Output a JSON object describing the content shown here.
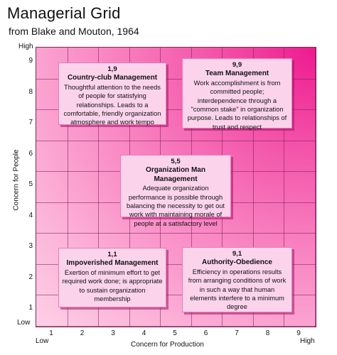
{
  "header": {
    "title": "Managerial Grid",
    "subtitle": "from Blake and Mouton, 1964"
  },
  "axes": {
    "y_label": "Concern for People",
    "x_label": "Concern for Production",
    "y_high": "High",
    "y_low": "Low",
    "x_low": "Low",
    "x_high": "High",
    "y_ticks": [
      "9",
      "8",
      "7",
      "6",
      "5",
      "4",
      "3",
      "2",
      "1"
    ],
    "x_ticks": [
      "1",
      "2",
      "3",
      "4",
      "5",
      "6",
      "7",
      "8",
      "9"
    ]
  },
  "styles": [
    {
      "coord": "1,9",
      "name": "Country-club Management",
      "desc": [
        "Thoughtful attention to the needs",
        "of people for statisfying",
        "relationships. Leads to a",
        "comfortable, friendly organization",
        "atmosphere and work tempo"
      ]
    },
    {
      "coord": "9,9",
      "name": "Team Management",
      "desc": [
        "Work accomplishment is from",
        "committed people;",
        "interdependence through a",
        "\"common stake\" in organization",
        "purpose. Leads to relationships of",
        "trust and respect"
      ]
    },
    {
      "coord": "5,5",
      "name": "Organization Man Management",
      "desc": [
        "Adequate organization",
        "performance is possible through",
        "balancing the necessity to get out",
        "work with maintaining morale of",
        "people at a satisfactory level"
      ]
    },
    {
      "coord": "1,1",
      "name": "Impoverished Management",
      "desc": [
        "Exertion of minimum effort to get",
        "required work done; is appropriate",
        "to sustain organization",
        "membership"
      ]
    },
    {
      "coord": "9,1",
      "name": "Authority-Obedience",
      "desc": [
        "Efficiency in operations results",
        "from arranging conditions of work",
        "in such a way that human",
        "elements interfere to a minimum",
        "degree"
      ]
    }
  ],
  "colors": {
    "grid_hot": "#ee1a90",
    "grid_light": "#fdd0e6",
    "box_fill": "#fbd4ec",
    "box_shadow": "#a01464"
  }
}
